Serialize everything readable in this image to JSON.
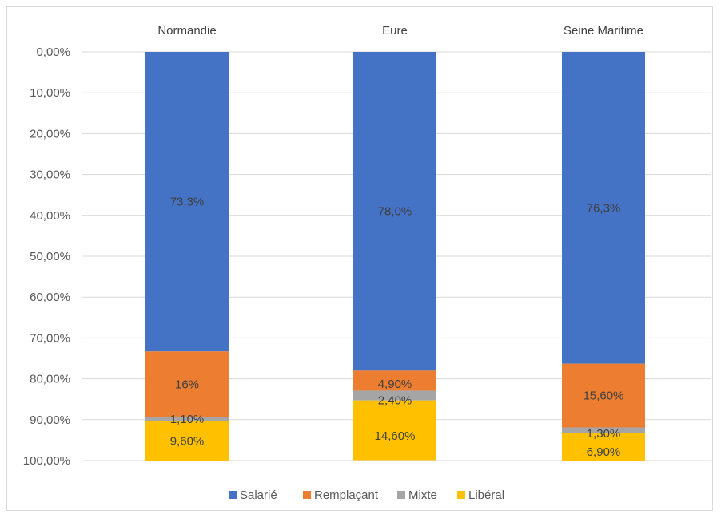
{
  "chart_data": {
    "type": "bar",
    "stacked": true,
    "orientation": "vertical",
    "y_axis_reversed": true,
    "categories": [
      "Normandie",
      "Eure",
      "Seine Maritime"
    ],
    "category_axis_position": "top",
    "ylim": [
      0,
      100
    ],
    "y_ticks": [
      0,
      10,
      20,
      30,
      40,
      50,
      60,
      70,
      80,
      90,
      100
    ],
    "y_tick_labels": [
      "0,00%",
      "10,00%",
      "20,00%",
      "30,00%",
      "40,00%",
      "50,00%",
      "60,00%",
      "70,00%",
      "80,00%",
      "90,00%",
      "100,00%"
    ],
    "grid": true,
    "legend_position": "bottom",
    "series": [
      {
        "name": "Salarié",
        "color": "#4472C4",
        "values": [
          73.3,
          78.0,
          76.3
        ],
        "labels": [
          "73,3%",
          "78,0%",
          "76,3%"
        ]
      },
      {
        "name": "Remplaçant",
        "color": "#ED7D31",
        "values": [
          16.0,
          4.9,
          15.6
        ],
        "labels": [
          "16%",
          "4,90%",
          "15,60%"
        ]
      },
      {
        "name": "Mixte",
        "color": "#A5A5A5",
        "values": [
          1.1,
          2.4,
          1.3
        ],
        "labels": [
          "1,10%",
          "2,40%",
          "1,30%"
        ]
      },
      {
        "name": "Libéral",
        "color": "#FFC000",
        "values": [
          9.6,
          14.6,
          6.9
        ],
        "labels": [
          "9,60%",
          "14,60%",
          "6,90%"
        ]
      }
    ]
  }
}
